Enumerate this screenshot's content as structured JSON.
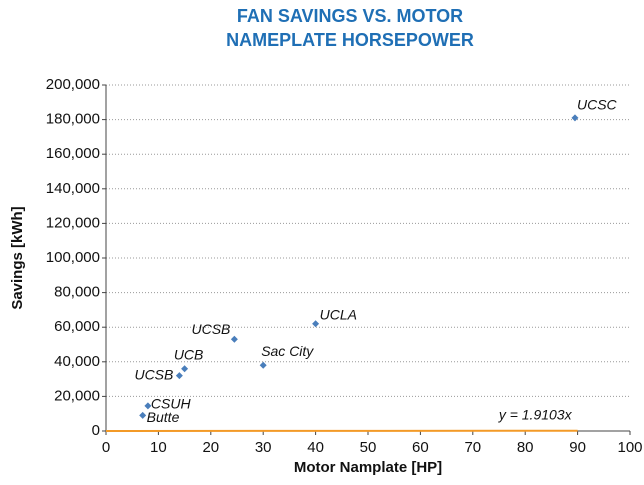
{
  "chart_data": {
    "type": "scatter",
    "title": [
      "FAN SAVINGS VS. MOTOR",
      "NAMEPLATE HORSEPOWER"
    ],
    "x_label": "Motor Namplate [HP]",
    "y_label": "Savings [kWh]",
    "point_labels": [
      "UCSC",
      "UCLA",
      "UCSB",
      "Sac City",
      "UCB",
      "UCSB",
      "CSUH",
      "Butte"
    ],
    "x": [
      89.5,
      40,
      24.5,
      30,
      15,
      14,
      8,
      7
    ],
    "values": [
      181000,
      62000,
      53000,
      38000,
      36000,
      32000,
      14500,
      9000
    ],
    "color": "#4a7ebb",
    "trendline": {
      "label": "y = 1.9103x",
      "slope": 1.9103,
      "x_range": [
        0,
        90
      ],
      "color": "#f39a27"
    },
    "xlim": [
      0,
      100
    ],
    "xticks": [
      0,
      10,
      20,
      30,
      40,
      50,
      60,
      70,
      80,
      90,
      100
    ],
    "ylim": [
      0,
      200000
    ],
    "yticks": [
      0,
      {
        "value": 20000,
        "label": "20,000"
      },
      {
        "value": 40000,
        "label": "40,000"
      },
      {
        "value": 60000,
        "label": "60,000"
      },
      {
        "value": 80000,
        "label": "80,000"
      },
      {
        "value": 100000,
        "label": "100,000"
      },
      {
        "value": 120000,
        "label": "120,000"
      },
      {
        "value": 140000,
        "label": "140,000"
      },
      {
        "value": 160000,
        "label": "160,000"
      },
      {
        "value": 180000,
        "label": "180,000"
      },
      {
        "value": 200000,
        "label": "200,000"
      }
    ],
    "grid": true
  }
}
